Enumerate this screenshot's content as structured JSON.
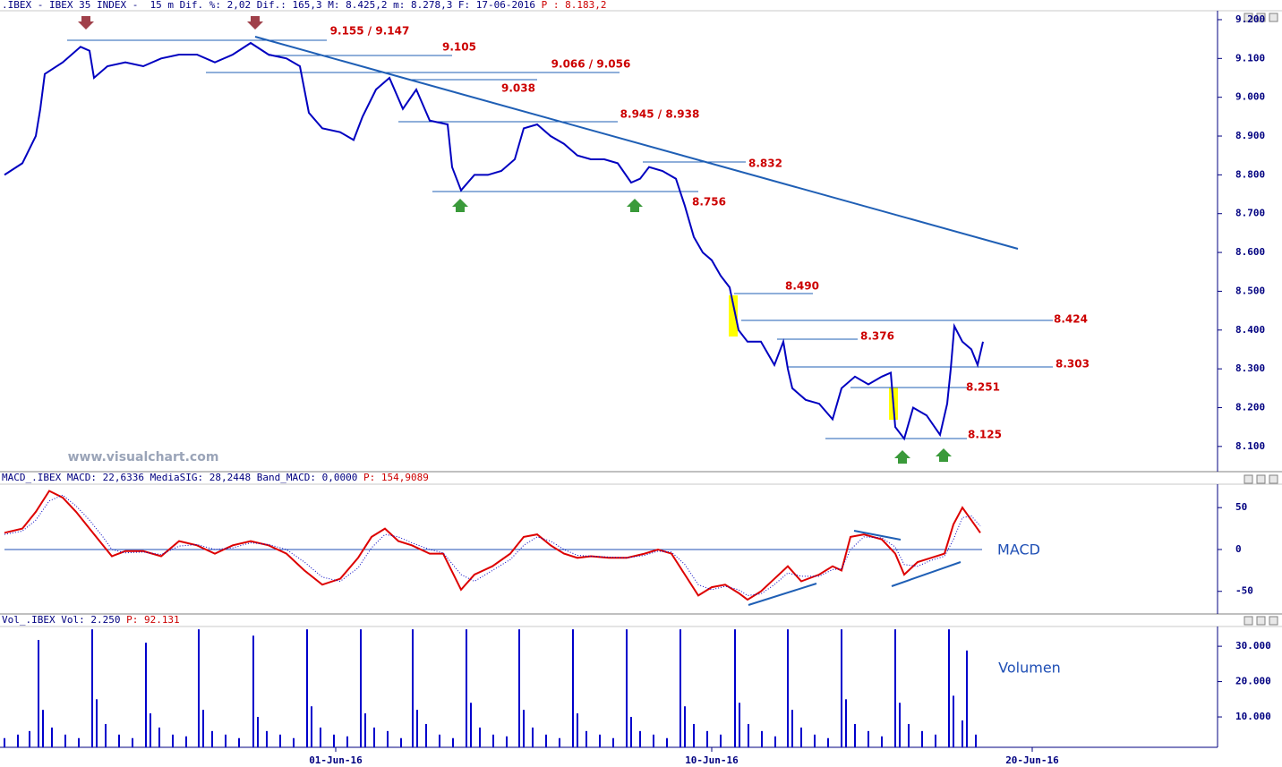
{
  "chart_data": [
    {
      "type": "line",
      "title": ".IBEX - IBEX 35 INDEX -  15 m Dif. %: 2,02 Dif.: 165,3 M: 8.425,2 m: 8.278,3 F: 17-06-2016",
      "title_extra": "P : 8.183,2",
      "color": "#0000c0",
      "x": [
        0.5,
        2.5,
        4,
        4.5,
        5,
        7,
        9,
        10,
        10.5,
        12,
        14,
        16,
        18,
        20,
        22,
        24,
        26,
        28,
        30,
        32,
        33.5,
        34.5,
        36,
        38,
        39.5,
        40.5,
        42,
        43.5,
        45,
        46.5,
        48,
        50,
        50.5,
        51.5,
        53,
        54.5,
        56,
        57.5,
        58.5,
        60,
        61.5,
        63,
        64.5,
        66,
        67.5,
        69,
        70.5,
        71.5,
        72.5,
        74,
        75.5,
        76.5,
        77.5,
        78.5,
        79.5,
        80.5,
        81.5,
        82.5,
        83.5,
        85,
        86.5,
        87.5,
        88,
        88.5,
        90,
        91.5,
        93,
        94,
        95.5,
        97,
        98.5,
        99.5,
        100,
        101,
        102,
        103.5,
        105,
        105.8,
        106.2,
        106.6,
        107.5,
        108.5,
        109.2,
        109.8
      ],
      "values": [
        8800,
        8830,
        8900,
        8970,
        9060,
        9090,
        9130,
        9120,
        9050,
        9080,
        9090,
        9080,
        9100,
        9110,
        9110,
        9090,
        9110,
        9140,
        9110,
        9100,
        9080,
        8960,
        8920,
        8910,
        8890,
        8950,
        9020,
        9050,
        8970,
        9020,
        8940,
        8930,
        8820,
        8760,
        8800,
        8800,
        8810,
        8840,
        8920,
        8930,
        8900,
        8880,
        8850,
        8840,
        8840,
        8830,
        8780,
        8790,
        8820,
        8810,
        8790,
        8720,
        8640,
        8600,
        8580,
        8540,
        8510,
        8400,
        8370,
        8370,
        8310,
        8370,
        8300,
        8250,
        8220,
        8210,
        8170,
        8250,
        8280,
        8260,
        8280,
        8290,
        8150,
        8120,
        8200,
        8180,
        8130,
        8210,
        8300,
        8410,
        8370,
        8350,
        8310,
        8370
      ],
      "xlim": [
        0,
        136
      ],
      "ylim": [
        8035,
        9223
      ],
      "yticks": [
        {
          "value": 8100,
          "label": "8.100"
        },
        {
          "value": 8200,
          "label": "8.200"
        },
        {
          "value": 8300,
          "label": "8.300"
        },
        {
          "value": 8400,
          "label": "8.400"
        },
        {
          "value": 8500,
          "label": "8.500"
        },
        {
          "value": 8600,
          "label": "8.600"
        },
        {
          "value": 8700,
          "label": "8.700"
        },
        {
          "value": 8800,
          "label": "8.800"
        },
        {
          "value": 8900,
          "label": "8.900"
        },
        {
          "value": 9000,
          "label": "9.000"
        },
        {
          "value": 9100,
          "label": "9.100"
        },
        {
          "value": 9200,
          "label": "9.200"
        }
      ],
      "annotations": [
        "9.155 / 9.147",
        "9.105",
        "9.066 / 9.056",
        "9.038",
        "8.945 / 8.938",
        "8.832",
        "8.756",
        "8.490",
        "8.424",
        "8.376",
        "8.303",
        "8.251",
        "8.125"
      ],
      "watermark": "www.visualchart.com"
    },
    {
      "type": "line",
      "title": "MACD_.IBEX MACD: 22,6336 MediaSIG: 28,2448 Band_MACD: 0,0000",
      "title_extra": "P: 154,9089",
      "label": "MACD",
      "x": [
        0.5,
        2.5,
        4,
        5.5,
        7,
        8.5,
        10,
        11.5,
        12.5,
        14,
        16,
        18,
        20,
        22,
        24,
        26,
        28,
        30,
        32,
        34,
        36,
        38,
        40,
        41.5,
        43,
        44.5,
        46,
        48,
        49.5,
        51.5,
        53,
        55,
        57,
        58.5,
        60,
        61.5,
        63,
        64.5,
        66,
        68,
        70,
        72,
        73.5,
        75,
        76.5,
        78,
        79.5,
        81,
        82.5,
        83.5,
        85,
        86.5,
        88,
        89.5,
        91.5,
        93,
        94,
        95,
        96.5,
        98.5,
        100,
        101,
        102.5,
        104,
        105.5,
        106.5,
        107.5,
        108.5,
        109.5
      ],
      "series": [
        {
          "color": "#dd0000",
          "style": "solid",
          "values": [
            20,
            25,
            45,
            70,
            62,
            45,
            25,
            5,
            -8,
            -2,
            -2,
            -8,
            10,
            5,
            -5,
            5,
            10,
            5,
            -5,
            -25,
            -42,
            -35,
            -10,
            15,
            25,
            10,
            5,
            -5,
            -5,
            -48,
            -30,
            -20,
            -5,
            15,
            18,
            5,
            -5,
            -10,
            -8,
            -10,
            -10,
            -5,
            0,
            -5,
            -30,
            -55,
            -45,
            -42,
            -52,
            -60,
            -50,
            -35,
            -20,
            -38,
            -30,
            -20,
            -25,
            15,
            18,
            12,
            -5,
            -30,
            -15,
            -10,
            -5,
            30,
            50,
            35,
            20
          ]
        },
        {
          "color": "#0000c0",
          "style": "dotted",
          "values": [
            18,
            22,
            35,
            58,
            65,
            52,
            35,
            15,
            0,
            -4,
            -3,
            -6,
            4,
            6,
            0,
            2,
            8,
            6,
            0,
            -15,
            -33,
            -38,
            -22,
            2,
            18,
            15,
            8,
            0,
            -4,
            -30,
            -38,
            -25,
            -12,
            5,
            15,
            10,
            0,
            -7,
            -8,
            -9,
            -10,
            -7,
            -2,
            -3,
            -18,
            -42,
            -48,
            -44,
            -48,
            -55,
            -53,
            -42,
            -28,
            -32,
            -32,
            -24,
            -23,
            0,
            15,
            14,
            3,
            -18,
            -20,
            -13,
            -8,
            12,
            38,
            40,
            28
          ]
        }
      ],
      "xlim": [
        0,
        136
      ],
      "ylim": [
        -77,
        78
      ],
      "yticks": [
        -50,
        0,
        50
      ]
    },
    {
      "type": "bar",
      "title": "Vol_.IBEX Vol: 2.250",
      "title_extra": "P: 92.131",
      "label": "Volumen",
      "color": "#0000cc",
      "x": [
        0.5,
        2,
        3.3,
        4.3,
        4.8,
        5.8,
        7.3,
        8.8,
        10.3,
        10.8,
        11.8,
        13.3,
        14.8,
        16.3,
        16.8,
        17.8,
        19.3,
        20.8,
        22.2,
        22.7,
        23.7,
        25.2,
        26.7,
        28.3,
        28.8,
        29.8,
        31.3,
        32.8,
        34.3,
        34.8,
        35.8,
        37.3,
        38.8,
        40.3,
        40.8,
        41.8,
        43.3,
        44.8,
        46.1,
        46.6,
        47.6,
        49.1,
        50.6,
        52.1,
        52.6,
        53.6,
        55.1,
        56.6,
        58.0,
        58.5,
        59.5,
        61.0,
        62.5,
        64.0,
        64.5,
        65.5,
        67.0,
        68.5,
        70.0,
        70.5,
        71.5,
        73.0,
        74.5,
        76.0,
        76.5,
        77.5,
        79.0,
        80.5,
        82.1,
        82.6,
        83.6,
        85.1,
        86.6,
        88.0,
        88.5,
        89.5,
        91.0,
        92.5,
        94.0,
        94.5,
        95.5,
        97.0,
        98.5,
        100.0,
        100.5,
        101.5,
        103.0,
        104.5,
        106.0,
        106.5,
        107.5,
        108.0,
        109.0
      ],
      "values": [
        4000,
        5000,
        6000,
        31800,
        12000,
        7000,
        5000,
        4000,
        34800,
        15000,
        8000,
        5000,
        4000,
        31000,
        11000,
        7000,
        5000,
        4500,
        34800,
        12000,
        6000,
        5000,
        4000,
        33000,
        10000,
        6000,
        5000,
        4000,
        34800,
        13000,
        7000,
        5000,
        4500,
        34800,
        11000,
        7000,
        6000,
        4000,
        34800,
        12000,
        8000,
        5000,
        4000,
        34800,
        14000,
        7000,
        5000,
        4500,
        34800,
        12000,
        7000,
        5000,
        4000,
        34800,
        11000,
        6000,
        5000,
        4000,
        34800,
        10000,
        6000,
        5000,
        4000,
        34800,
        13000,
        8000,
        6000,
        5000,
        34800,
        14000,
        8000,
        6000,
        4500,
        34800,
        12000,
        7000,
        5000,
        4000,
        34800,
        15000,
        8000,
        6000,
        4500,
        34800,
        14000,
        8000,
        6000,
        5000,
        34800,
        16000,
        9000,
        28800,
        5000
      ],
      "xlim": [
        0,
        136
      ],
      "ylim": [
        1400,
        35600
      ],
      "yticks": [
        {
          "value": 10000,
          "label": "10.000"
        },
        {
          "value": 20000,
          "label": "20.000"
        },
        {
          "value": 30000,
          "label": "30.000"
        }
      ],
      "xticks": [
        {
          "value": 37.5,
          "label": "01-Jun-16"
        },
        {
          "value": 79.5,
          "label": "10-Jun-16"
        },
        {
          "value": 115.3,
          "label": "20-Jun-16"
        }
      ]
    }
  ]
}
